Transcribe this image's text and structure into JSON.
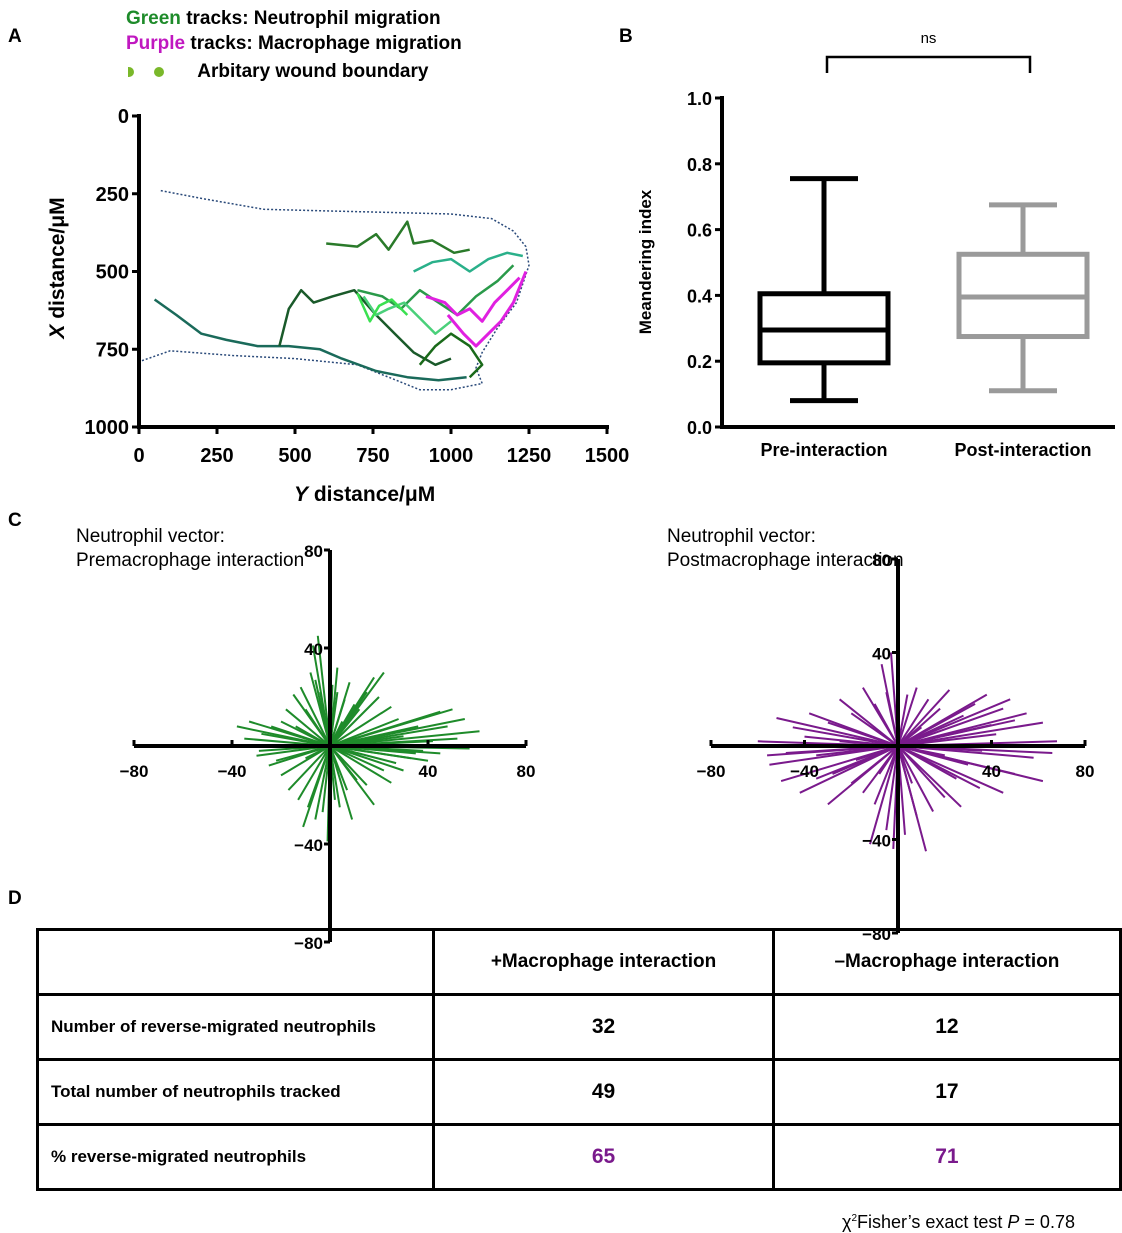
{
  "panels": {
    "a": "A",
    "b": "B",
    "c": "C",
    "d": "D"
  },
  "colors": {
    "neutrophil": "#1e8b2a",
    "macrophage": "#e020e0",
    "vector_macro": "#7a1a8c",
    "box_pre": "#000000",
    "box_post": "#9a9a9a"
  },
  "legend": {
    "green_word": "Green",
    "green_rest": " tracks: Neutrophil migration",
    "purple_word": "Purple",
    "purple_rest": " tracks: Macrophage migration",
    "boundary": "Arbitary wound boundary"
  },
  "chart_data": [
    {
      "type": "line",
      "panel": "A",
      "xlabel_italic": "Y",
      "xlabel_rest": " distance/μM",
      "ylabel_italic": "X",
      "ylabel_rest": " distance/μM",
      "xlim": [
        0,
        1500
      ],
      "ylim": [
        0,
        1000
      ],
      "y_inverted": true,
      "x_ticks": [
        "0",
        "250",
        "500",
        "750",
        "1000",
        "1250",
        "1500"
      ],
      "y_ticks": [
        "0",
        "250",
        "500",
        "750",
        "1000"
      ],
      "series": [
        {
          "kind": "wound-boundary",
          "color": "#2a4a7a",
          "values": [
            [
              70,
              240
            ],
            [
              200,
              265
            ],
            [
              400,
              300
            ],
            [
              600,
              305
            ],
            [
              800,
              310
            ],
            [
              1000,
              315
            ],
            [
              1130,
              330
            ],
            [
              1200,
              370
            ],
            [
              1240,
              420
            ],
            [
              1250,
              480
            ],
            [
              1210,
              600
            ],
            [
              1150,
              680
            ],
            [
              1100,
              760
            ],
            [
              1080,
              810
            ],
            [
              1100,
              860
            ],
            [
              1000,
              880
            ],
            [
              900,
              880
            ],
            [
              800,
              840
            ],
            [
              700,
              800
            ],
            [
              600,
              790
            ],
            [
              500,
              780
            ],
            [
              300,
              770
            ],
            [
              100,
              755
            ],
            [
              0,
              790
            ]
          ]
        },
        {
          "kind": "neutrophil",
          "color": "#2a7a2a",
          "values": [
            [
              600,
              410
            ],
            [
              700,
              420
            ],
            [
              760,
              380
            ],
            [
              800,
              430
            ],
            [
              860,
              340
            ],
            [
              880,
              410
            ],
            [
              940,
              400
            ],
            [
              1010,
              440
            ],
            [
              1060,
              430
            ]
          ]
        },
        {
          "kind": "neutrophil",
          "color": "#1a6a5a",
          "values": [
            [
              50,
              590
            ],
            [
              120,
              640
            ],
            [
              200,
              700
            ],
            [
              280,
              720
            ],
            [
              380,
              740
            ],
            [
              480,
              740
            ],
            [
              580,
              750
            ],
            [
              650,
              780
            ],
            [
              760,
              820
            ],
            [
              860,
              840
            ],
            [
              960,
              850
            ],
            [
              1050,
              840
            ]
          ]
        },
        {
          "kind": "neutrophil",
          "color": "#1a5a2a",
          "values": [
            [
              450,
              740
            ],
            [
              480,
              620
            ],
            [
              520,
              560
            ],
            [
              560,
              600
            ],
            [
              620,
              580
            ],
            [
              690,
              560
            ],
            [
              760,
              640
            ],
            [
              820,
              700
            ],
            [
              880,
              760
            ],
            [
              950,
              800
            ],
            [
              1000,
              780
            ]
          ]
        },
        {
          "kind": "neutrophil",
          "color": "#2a9a4a",
          "values": [
            [
              700,
              560
            ],
            [
              780,
              580
            ],
            [
              840,
              620
            ],
            [
              900,
              560
            ],
            [
              960,
              600
            ],
            [
              1020,
              640
            ],
            [
              1080,
              580
            ],
            [
              1150,
              530
            ],
            [
              1200,
              480
            ]
          ]
        },
        {
          "kind": "neutrophil",
          "color": "#4ad07a",
          "values": [
            [
              720,
              580
            ],
            [
              760,
              640
            ],
            [
              800,
              620
            ],
            [
              850,
              600
            ],
            [
              900,
              650
            ],
            [
              950,
              700
            ],
            [
              1000,
              660
            ]
          ]
        },
        {
          "kind": "neutrophil",
          "color": "#2ab08a",
          "values": [
            [
              880,
              500
            ],
            [
              940,
              470
            ],
            [
              1000,
              460
            ],
            [
              1060,
              500
            ],
            [
              1120,
              460
            ],
            [
              1180,
              440
            ],
            [
              1230,
              450
            ]
          ]
        },
        {
          "kind": "neutrophil",
          "color": "#3ae050",
          "values": [
            [
              700,
              570
            ],
            [
              740,
              660
            ],
            [
              770,
              610
            ],
            [
              810,
              590
            ],
            [
              860,
              640
            ]
          ]
        },
        {
          "kind": "neutrophil",
          "color": "#1a6a1a",
          "values": [
            [
              900,
              800
            ],
            [
              950,
              740
            ],
            [
              1000,
              700
            ],
            [
              1060,
              740
            ],
            [
              1100,
              800
            ],
            [
              1060,
              840
            ]
          ]
        },
        {
          "kind": "macrophage",
          "color": "#e020e0",
          "values": [
            [
              920,
              580
            ],
            [
              980,
              600
            ],
            [
              1020,
              640
            ],
            [
              1060,
              620
            ],
            [
              1100,
              660
            ],
            [
              1140,
              600
            ],
            [
              1180,
              560
            ],
            [
              1220,
              520
            ]
          ]
        },
        {
          "kind": "macrophage",
          "color": "#e020e0",
          "values": [
            [
              990,
              640
            ],
            [
              1040,
              700
            ],
            [
              1080,
              740
            ],
            [
              1120,
              700
            ],
            [
              1160,
              660
            ],
            [
              1200,
              600
            ],
            [
              1240,
              500
            ]
          ]
        }
      ]
    },
    {
      "type": "box",
      "panel": "B",
      "ylabel": "Meandering index",
      "ylim": [
        0,
        1.0
      ],
      "y_ticks": [
        "0.0",
        "0.2",
        "0.4",
        "0.6",
        "0.8",
        "1.0"
      ],
      "categories": [
        "Pre-interaction",
        "Post-interaction"
      ],
      "boxes": [
        {
          "name": "Pre-interaction",
          "min": 0.08,
          "q1": 0.195,
          "median": 0.295,
          "q3": 0.405,
          "max": 0.755,
          "color": "#000000"
        },
        {
          "name": "Post-interaction",
          "min": 0.11,
          "q1": 0.275,
          "median": 0.395,
          "q3": 0.525,
          "max": 0.675,
          "color": "#9a9a9a"
        }
      ],
      "annotation": "ns"
    },
    {
      "type": "scatter",
      "panel": "C-left",
      "title_line1": "Neutrophil vector:",
      "title_line2": "Premacrophage interaction",
      "xlim": [
        -80,
        80
      ],
      "ylim": [
        -80,
        80
      ],
      "x_ticks": [
        "−80",
        "−40",
        "40",
        "80"
      ],
      "y_ticks": [
        "80",
        "40",
        "−40",
        "−80"
      ],
      "color": "#1e8b2a",
      "vectors": [
        [
          61,
          6
        ],
        [
          55,
          11
        ],
        [
          50,
          15
        ],
        [
          45,
          14
        ],
        [
          48,
          8
        ],
        [
          52,
          3
        ],
        [
          57,
          -1
        ],
        [
          40,
          -6
        ],
        [
          35,
          -3
        ],
        [
          30,
          4
        ],
        [
          28,
          11
        ],
        [
          25,
          16
        ],
        [
          20,
          20
        ],
        [
          15,
          22
        ],
        [
          10,
          17
        ],
        [
          8,
          26
        ],
        [
          6,
          19
        ],
        [
          5,
          10
        ],
        [
          3,
          22
        ],
        [
          1,
          25
        ],
        [
          -2,
          12
        ],
        [
          -4,
          22
        ],
        [
          -6,
          27
        ],
        [
          -8,
          30
        ],
        [
          -10,
          15
        ],
        [
          -12,
          24
        ],
        [
          -15,
          21
        ],
        [
          -18,
          15
        ],
        [
          -20,
          10
        ],
        [
          -24,
          8
        ],
        [
          -28,
          5
        ],
        [
          -30,
          -4
        ],
        [
          -25,
          -8
        ],
        [
          -20,
          -12
        ],
        [
          -17,
          -18
        ],
        [
          -13,
          -22
        ],
        [
          -9,
          -25
        ],
        [
          -6,
          -30
        ],
        [
          -3,
          -27
        ],
        [
          -1,
          -39
        ],
        [
          2,
          -22
        ],
        [
          4,
          -25
        ],
        [
          7,
          -18
        ],
        [
          11,
          -14
        ],
        [
          15,
          -16
        ],
        [
          22,
          -10
        ],
        [
          27,
          -7
        ],
        [
          33,
          -5
        ],
        [
          38,
          -2
        ],
        [
          45,
          -3
        ],
        [
          22,
          30
        ],
        [
          18,
          28
        ],
        [
          12,
          15
        ],
        [
          -5,
          45
        ],
        [
          -7,
          41
        ],
        [
          -35,
          3
        ],
        [
          -29,
          -2
        ],
        [
          -22,
          -6
        ],
        [
          -38,
          8
        ],
        [
          -33,
          10
        ],
        [
          42,
          2
        ],
        [
          36,
          8
        ],
        [
          25,
          -15
        ],
        [
          9,
          -30
        ],
        [
          -11,
          -33
        ],
        [
          3,
          32
        ],
        [
          -14,
          8
        ],
        [
          -10,
          -5
        ],
        [
          30,
          -10
        ],
        [
          18,
          -24
        ]
      ]
    },
    {
      "type": "scatter",
      "panel": "C-right",
      "title_line1": "Neutrophil vector:",
      "title_line2": "Postmacrophage interaction",
      "xlim": [
        -80,
        80
      ],
      "ylim": [
        -80,
        80
      ],
      "x_ticks": [
        "−80",
        "−40",
        "40",
        "80"
      ],
      "y_ticks": [
        "80",
        "40",
        "−40",
        "−80"
      ],
      "color": "#7a1a8c",
      "vectors": [
        [
          68,
          2
        ],
        [
          62,
          10
        ],
        [
          55,
          14
        ],
        [
          50,
          11
        ],
        [
          45,
          16
        ],
        [
          40,
          9
        ],
        [
          58,
          -5
        ],
        [
          62,
          -15
        ],
        [
          50,
          -12
        ],
        [
          45,
          -20
        ],
        [
          35,
          -18
        ],
        [
          30,
          -8
        ],
        [
          25,
          -14
        ],
        [
          20,
          -22
        ],
        [
          15,
          -28
        ],
        [
          8,
          -30
        ],
        [
          3,
          -38
        ],
        [
          -2,
          -44
        ],
        [
          -5,
          -36
        ],
        [
          -10,
          -25
        ],
        [
          -15,
          -20
        ],
        [
          -20,
          -16
        ],
        [
          -28,
          -12
        ],
        [
          -35,
          -14
        ],
        [
          -42,
          -20
        ],
        [
          -50,
          -15
        ],
        [
          -55,
          -8
        ],
        [
          -48,
          -3
        ],
        [
          -40,
          4
        ],
        [
          -45,
          8
        ],
        [
          -52,
          12
        ],
        [
          -38,
          14
        ],
        [
          -30,
          10
        ],
        [
          -25,
          20
        ],
        [
          -20,
          14
        ],
        [
          -15,
          25
        ],
        [
          -10,
          18
        ],
        [
          -5,
          23
        ],
        [
          0,
          28
        ],
        [
          4,
          22
        ],
        [
          8,
          25
        ],
        [
          13,
          20
        ],
        [
          18,
          16
        ],
        [
          22,
          24
        ],
        [
          28,
          13
        ],
        [
          33,
          18
        ],
        [
          38,
          22
        ],
        [
          42,
          5
        ],
        [
          -25,
          2
        ],
        [
          -18,
          -6
        ],
        [
          20,
          -4
        ],
        [
          10,
          8
        ],
        [
          -8,
          -12
        ],
        [
          6,
          -16
        ],
        [
          27,
          -26
        ],
        [
          -30,
          -25
        ],
        [
          -60,
          2
        ],
        [
          -56,
          -4
        ],
        [
          66,
          -3
        ],
        [
          48,
          20
        ],
        [
          -3,
          40
        ],
        [
          -7,
          35
        ],
        [
          12,
          -45
        ],
        [
          -12,
          -42
        ],
        [
          36,
          -2
        ],
        [
          -35,
          -4
        ]
      ]
    }
  ],
  "table": {
    "header": [
      "",
      "+Macrophage interaction",
      "–Macrophage interaction"
    ],
    "rows": [
      {
        "label": "Number of reverse-migrated neutrophils",
        "plus": "32",
        "minus": "12"
      },
      {
        "label": "Total number of neutrophils tracked",
        "plus": "49",
        "minus": "17"
      },
      {
        "label": "% reverse-migrated neutrophils",
        "plus": "65",
        "minus": "71"
      }
    ]
  },
  "footnote": {
    "chi": "χ",
    "sup": "2",
    "text": "Fisher’s exact test ",
    "p_italic": "P",
    "p_value": " = 0.78"
  }
}
